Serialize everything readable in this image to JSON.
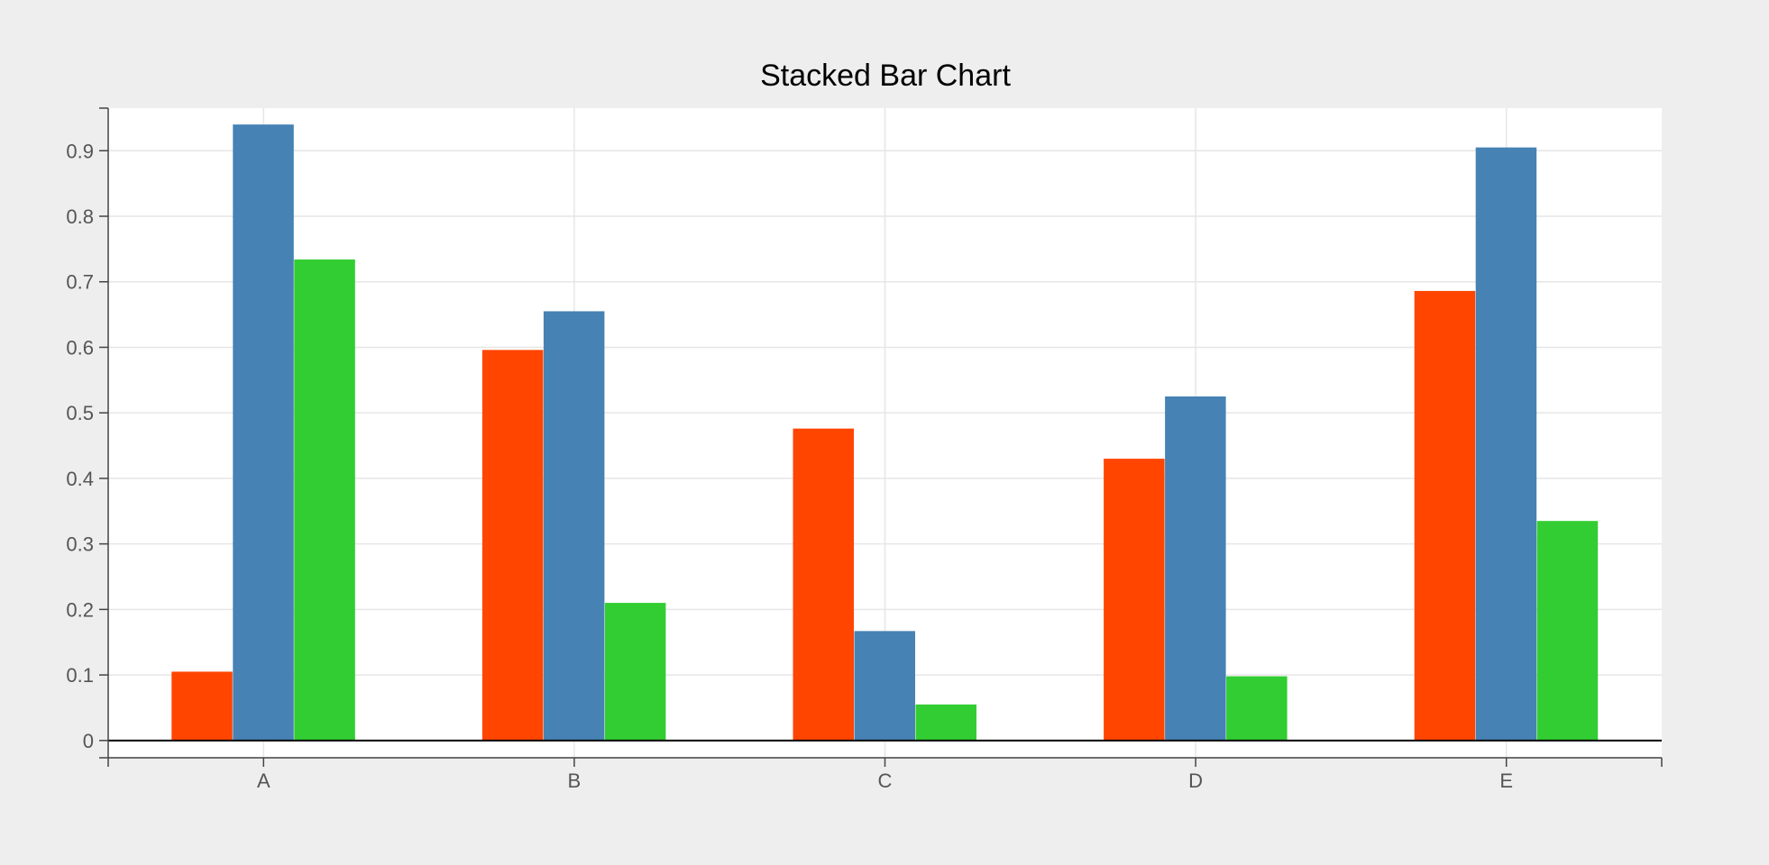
{
  "chart_data": {
    "type": "bar",
    "title": "Stacked Bar Chart",
    "xlabel": "",
    "ylabel": "",
    "categories": [
      "A",
      "B",
      "C",
      "D",
      "E"
    ],
    "series": [
      {
        "values": [
          0.105,
          0.596,
          0.476,
          0.43,
          0.686
        ]
      },
      {
        "values": [
          0.94,
          0.655,
          0.167,
          0.525,
          0.905
        ]
      },
      {
        "values": [
          0.734,
          0.21,
          0.055,
          0.098,
          0.335
        ]
      }
    ],
    "ylim": [
      -0.025,
      0.965
    ],
    "yticks": [
      0,
      0.1,
      0.2,
      0.3,
      0.4,
      0.5,
      0.6,
      0.7,
      0.8,
      0.9
    ],
    "ytick_labels": [
      "0",
      "0.1",
      "0.2",
      "0.3",
      "0.4",
      "0.5",
      "0.6",
      "0.7",
      "0.8",
      "0.9"
    ],
    "grid": true,
    "legend": "none",
    "colors": {
      "series": [
        "#ff4500",
        "#4682b4",
        "#32cd32"
      ],
      "plot_background": "#ffffff",
      "page_background": "#eeeeee",
      "gridline": "#e6e6e6",
      "axis": "#444444",
      "zero_line": "#000000",
      "tick_text": "#555555",
      "title_text": "#000000"
    }
  }
}
